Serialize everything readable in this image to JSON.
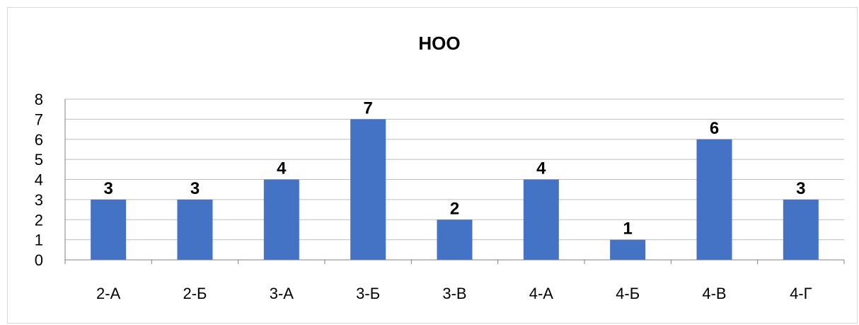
{
  "chart_data": {
    "type": "bar",
    "title": "НОО",
    "categories": [
      "2-А",
      "2-Б",
      "3-А",
      "3-Б",
      "3-В",
      "4-А",
      "4-Б",
      "4-В",
      "4-Г"
    ],
    "values": [
      3,
      3,
      4,
      7,
      2,
      4,
      1,
      6,
      3
    ],
    "data_labels": [
      "3",
      "3",
      "4",
      "7",
      "2",
      "4",
      "1",
      "6",
      "3"
    ],
    "y_ticks": [
      "0",
      "1",
      "2",
      "3",
      "4",
      "5",
      "6",
      "7",
      "8"
    ],
    "ylim": [
      0,
      8
    ],
    "grid": true,
    "legend": "none",
    "bar_color": "#4472c4",
    "grid_color": "#bfbfbf",
    "axis_color": "#808080"
  }
}
